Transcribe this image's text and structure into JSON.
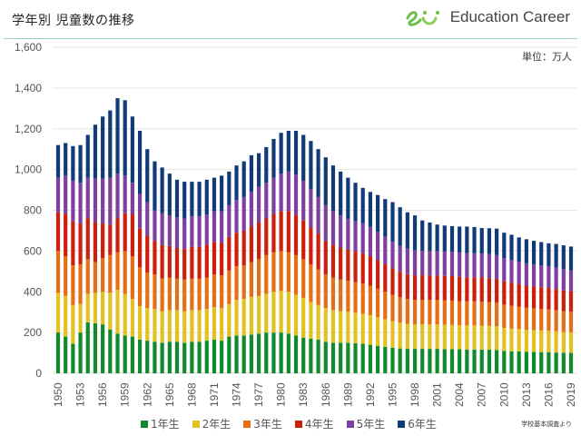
{
  "header": {
    "title": "学年別 児童数の推移",
    "brand_name": "Education Career",
    "unit_label": "単位：万人",
    "source_note": "学校基本調査より"
  },
  "colors": {
    "grade1": "#108a2c",
    "grade2": "#e2c221",
    "grade3": "#e56f14",
    "grade4": "#cc1f0c",
    "grade5": "#7e3fa0",
    "grade6": "#0f3b78",
    "gridline": "#e6e6e6",
    "axis_text": "#555555",
    "header_line": "#9ad5b4",
    "logo_green": "#6cc04a"
  },
  "chart_data": {
    "type": "bar",
    "stacked": true,
    "title": "学年別 児童数の推移",
    "xlabel": "",
    "ylabel": "",
    "unit": "万人",
    "ylim": [
      0,
      1600
    ],
    "yticks": [
      0,
      200,
      400,
      600,
      800,
      1000,
      1200,
      1400,
      1600
    ],
    "ytick_labels": [
      "0",
      "200",
      "400",
      "600",
      "800",
      "1,000",
      "1,200",
      "1,400",
      "1,600"
    ],
    "grid": true,
    "legend_position": "bottom",
    "x": [
      1950,
      1951,
      1952,
      1953,
      1954,
      1955,
      1956,
      1957,
      1958,
      1959,
      1960,
      1961,
      1962,
      1963,
      1964,
      1965,
      1966,
      1967,
      1968,
      1969,
      1970,
      1971,
      1972,
      1973,
      1974,
      1975,
      1976,
      1977,
      1978,
      1979,
      1980,
      1981,
      1982,
      1983,
      1984,
      1985,
      1986,
      1987,
      1988,
      1989,
      1990,
      1991,
      1992,
      1993,
      1994,
      1995,
      1996,
      1997,
      1998,
      1999,
      2000,
      2001,
      2002,
      2003,
      2004,
      2005,
      2006,
      2007,
      2008,
      2009,
      2010,
      2011,
      2012,
      2013,
      2014,
      2015,
      2016,
      2017,
      2018,
      2019
    ],
    "xtick_labels": [
      "1950",
      "1953",
      "1956",
      "1959",
      "1962",
      "1965",
      "1968",
      "1971",
      "1974",
      "1977",
      "1980",
      "1983",
      "1986",
      "1989",
      "1992",
      "1995",
      "1998",
      "2001",
      "2004",
      "2007",
      "2010",
      "2013",
      "2016",
      "2019"
    ],
    "series": [
      {
        "name": "1年生",
        "color_key": "grade1",
        "values": [
          200,
          180,
          145,
          200,
          250,
          245,
          240,
          215,
          195,
          185,
          180,
          165,
          160,
          155,
          150,
          155,
          155,
          150,
          155,
          155,
          160,
          165,
          160,
          180,
          185,
          185,
          190,
          195,
          200,
          200,
          200,
          195,
          185,
          175,
          170,
          165,
          155,
          150,
          150,
          150,
          147,
          145,
          140,
          135,
          130,
          125,
          122,
          120,
          120,
          120,
          120,
          120,
          118,
          118,
          118,
          117,
          117,
          116,
          116,
          115,
          110,
          108,
          107,
          106,
          105,
          104,
          104,
          102,
          101,
          100
        ]
      },
      {
        "name": "2年生",
        "color_key": "grade2",
        "values": [
          195,
          200,
          190,
          140,
          140,
          150,
          160,
          180,
          215,
          205,
          185,
          165,
          160,
          160,
          155,
          155,
          155,
          155,
          155,
          155,
          155,
          160,
          160,
          160,
          175,
          180,
          185,
          185,
          190,
          200,
          205,
          205,
          200,
          195,
          180,
          170,
          165,
          160,
          155,
          152,
          150,
          147,
          145,
          140,
          135,
          130,
          126,
          123,
          121,
          121,
          120,
          120,
          120,
          119,
          118,
          118,
          118,
          118,
          117,
          116,
          113,
          112,
          110,
          108,
          107,
          106,
          105,
          104,
          102,
          101
        ]
      },
      {
        "name": "3年生",
        "color_key": "grade3",
        "values": [
          205,
          195,
          195,
          195,
          170,
          150,
          165,
          185,
          185,
          210,
          210,
          190,
          175,
          170,
          160,
          160,
          155,
          155,
          155,
          155,
          155,
          160,
          160,
          165,
          165,
          165,
          170,
          180,
          190,
          195,
          195,
          195,
          195,
          190,
          185,
          175,
          165,
          160,
          155,
          152,
          150,
          148,
          145,
          140,
          135,
          130,
          125,
          122,
          120,
          120,
          120,
          120,
          120,
          120,
          118,
          118,
          118,
          118,
          117,
          116,
          114,
          112,
          110,
          108,
          107,
          106,
          105,
          104,
          102,
          101
        ]
      },
      {
        "name": "4年生",
        "color_key": "grade4",
        "values": [
          190,
          205,
          215,
          200,
          200,
          195,
          170,
          150,
          165,
          185,
          205,
          190,
          180,
          165,
          165,
          155,
          150,
          150,
          155,
          155,
          160,
          160,
          160,
          165,
          165,
          170,
          175,
          180,
          180,
          185,
          195,
          200,
          195,
          190,
          180,
          175,
          165,
          160,
          155,
          152,
          150,
          148,
          145,
          140,
          135,
          130,
          125,
          122,
          120,
          120,
          120,
          120,
          120,
          120,
          119,
          118,
          118,
          118,
          117,
          116,
          114,
          112,
          110,
          108,
          107,
          106,
          105,
          104,
          102,
          101
        ]
      },
      {
        "name": "5年生",
        "color_key": "grade5",
        "values": [
          170,
          190,
          200,
          200,
          200,
          215,
          220,
          230,
          220,
          185,
          155,
          170,
          165,
          150,
          155,
          150,
          150,
          150,
          150,
          150,
          150,
          150,
          155,
          155,
          160,
          165,
          170,
          175,
          175,
          180,
          185,
          195,
          200,
          195,
          190,
          180,
          175,
          165,
          160,
          152,
          150,
          148,
          145,
          140,
          135,
          130,
          127,
          125,
          122,
          120,
          120,
          120,
          120,
          120,
          120,
          119,
          118,
          118,
          118,
          117,
          115,
          113,
          111,
          110,
          108,
          107,
          106,
          105,
          104,
          103
        ]
      },
      {
        "name": "6年生",
        "color_key": "grade6",
        "values": [
          160,
          160,
          170,
          185,
          210,
          265,
          305,
          330,
          370,
          370,
          325,
          310,
          260,
          240,
          225,
          205,
          185,
          180,
          170,
          170,
          170,
          165,
          175,
          165,
          170,
          175,
          180,
          165,
          175,
          190,
          200,
          200,
          215,
          225,
          235,
          235,
          235,
          225,
          215,
          202,
          188,
          174,
          170,
          180,
          185,
          195,
          190,
          178,
          172,
          149,
          140,
          130,
          127,
          125,
          127,
          130,
          129,
          125,
          127,
          130,
          124,
          123,
          119,
          118,
          116,
          115,
          113,
          116,
          117,
          116
        ]
      }
    ]
  },
  "legend": {
    "items": [
      {
        "label": "1年生",
        "color_key": "grade1"
      },
      {
        "label": "2年生",
        "color_key": "grade2"
      },
      {
        "label": "3年生",
        "color_key": "grade3"
      },
      {
        "label": "4年生",
        "color_key": "grade4"
      },
      {
        "label": "5年生",
        "color_key": "grade5"
      },
      {
        "label": "6年生",
        "color_key": "grade6"
      }
    ]
  }
}
